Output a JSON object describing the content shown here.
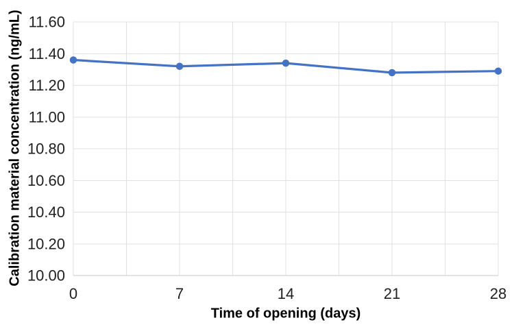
{
  "chart_data": {
    "type": "line",
    "title": "",
    "xlabel": "Time of opening (days)",
    "ylabel": "Calibration material concentration (ng/mL)",
    "x": [
      0,
      7,
      14,
      21,
      28
    ],
    "y": [
      11.36,
      11.32,
      11.34,
      11.28,
      11.29
    ],
    "xticks": [
      0,
      7,
      14,
      21,
      28
    ],
    "xlim": [
      0,
      28
    ],
    "ylim": [
      10.0,
      11.6
    ],
    "ytick_step": 0.2,
    "ytick_labels": [
      "10.00",
      "10.20",
      "10.40",
      "10.60",
      "10.80",
      "11.00",
      "11.20",
      "11.40",
      "11.60"
    ],
    "legend": "none",
    "grid": {
      "horizontal": true,
      "vertical": true,
      "vertical_interval_days": 3.5
    },
    "marker": "circle",
    "colors": {
      "series": "#4472C4",
      "gridline": "#E0E0E0",
      "axis_line": "#C9C9C9",
      "tick_text": "#1f1f1f",
      "title_text": "#000000",
      "background": "#FFFFFF"
    }
  }
}
